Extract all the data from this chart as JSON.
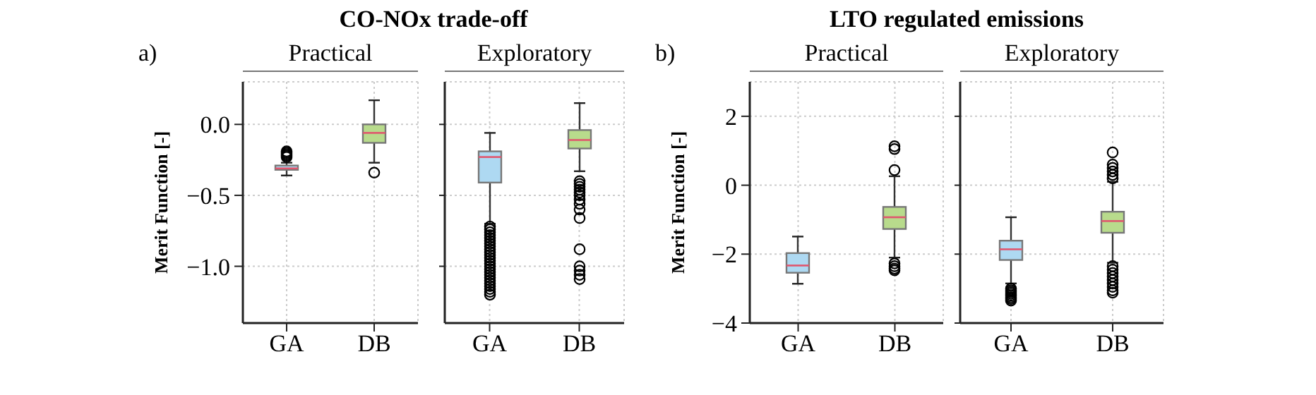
{
  "chart_data": [
    {
      "type": "box",
      "title": "CO-NOx trade-off",
      "subtitle": "Practical",
      "annotations": [
        "a)"
      ],
      "ylabel": "Merit Function [-]",
      "categories": [
        "GA",
        "DB"
      ],
      "colors": [
        "#aed9f2",
        "#b8db8c"
      ],
      "ylim": [
        -1.4,
        0.3
      ],
      "yticks": [
        {
          "value": -1.0,
          "label": "−1.0"
        },
        {
          "value": -0.5,
          "label": "−0.5"
        },
        {
          "value": 0.0,
          "label": "0.0"
        }
      ],
      "grid": true,
      "boxes": [
        {
          "low": -0.36,
          "q1": -0.32,
          "median": -0.31,
          "q3": -0.29,
          "high": -0.27,
          "outliers": [
            -0.19,
            -0.2,
            -0.21,
            -0.22,
            -0.23
          ]
        },
        {
          "low": -0.27,
          "q1": -0.13,
          "median": -0.06,
          "q3": 0.0,
          "high": 0.17,
          "outliers": [
            -0.34
          ]
        }
      ]
    },
    {
      "type": "box",
      "subtitle": "Exploratory",
      "categories": [
        "GA",
        "DB"
      ],
      "colors": [
        "#aed9f2",
        "#b8db8c"
      ],
      "ylim": [
        -1.4,
        0.3
      ],
      "yticks": [
        {
          "value": -1.0,
          "label": null
        },
        {
          "value": -0.5,
          "label": null
        },
        {
          "value": 0.0,
          "label": null
        }
      ],
      "grid": true,
      "tick_labels": "x",
      "boxes": [
        {
          "low": -0.7,
          "q1": -0.41,
          "median": -0.23,
          "q3": -0.19,
          "high": -0.06,
          "outliers": [
            -0.72,
            -0.74,
            -0.76,
            -0.78,
            -0.8,
            -0.82,
            -0.84,
            -0.86,
            -0.88,
            -0.9,
            -0.92,
            -0.94,
            -0.96,
            -0.98,
            -1.0,
            -1.02,
            -1.04,
            -1.06,
            -1.08,
            -1.1,
            -1.12,
            -1.14,
            -1.16,
            -1.18,
            -1.2
          ]
        },
        {
          "low": -0.33,
          "q1": -0.17,
          "median": -0.11,
          "q3": -0.04,
          "high": 0.15,
          "outliers": [
            -0.4,
            -0.42,
            -0.44,
            -0.46,
            -0.48,
            -0.5,
            -0.53,
            -0.56,
            -0.6,
            -0.66,
            -0.88,
            -1.0,
            -1.03,
            -1.06,
            -1.09
          ]
        }
      ]
    },
    {
      "type": "box",
      "title": "LTO regulated emissions",
      "subtitle": "Practical",
      "annotations": [
        "b)"
      ],
      "ylabel": "Merit Function [-]",
      "categories": [
        "GA",
        "DB"
      ],
      "colors": [
        "#aed9f2",
        "#b8db8c"
      ],
      "ylim": [
        -4,
        3
      ],
      "yticks": [
        {
          "value": -4,
          "label": "−4"
        },
        {
          "value": -2,
          "label": "−2"
        },
        0,
        2
      ],
      "grid": true,
      "boxes": [
        {
          "low": -2.86,
          "q1": -2.54,
          "median": -2.33,
          "q3": -1.97,
          "high": -1.49
        },
        {
          "low": -2.1,
          "q1": -1.27,
          "median": -0.93,
          "q3": -0.63,
          "high": 0.26,
          "outliers": [
            0.44,
            1.05,
            1.13,
            -2.27,
            -2.35,
            -2.42,
            -2.47
          ]
        }
      ]
    },
    {
      "type": "box",
      "subtitle": "Exploratory",
      "categories": [
        "GA",
        "DB"
      ],
      "colors": [
        "#aed9f2",
        "#b8db8c"
      ],
      "ylim": [
        -4,
        3
      ],
      "yticks": [
        {
          "value": -4,
          "label": null
        },
        {
          "value": -2,
          "label": null
        },
        {
          "value": 0,
          "label": null
        },
        {
          "value": 2,
          "label": null
        }
      ],
      "grid": true,
      "tick_labels": "x",
      "boxes": [
        {
          "low": -2.85,
          "q1": -2.17,
          "median": -1.86,
          "q3": -1.61,
          "high": -0.93,
          "outliers": [
            -3.0,
            -3.05,
            -3.1,
            -3.15,
            -3.2,
            -3.25,
            -3.3,
            -3.35
          ]
        },
        {
          "low": -2.25,
          "q1": -1.38,
          "median": -1.04,
          "q3": -0.77,
          "high": 0.1,
          "outliers": [
            0.2,
            0.3,
            0.4,
            0.5,
            0.6,
            0.95,
            -2.35,
            -2.45,
            -2.55,
            -2.65,
            -2.75,
            -2.85,
            -2.95,
            -3.05,
            -3.12
          ]
        }
      ]
    }
  ]
}
